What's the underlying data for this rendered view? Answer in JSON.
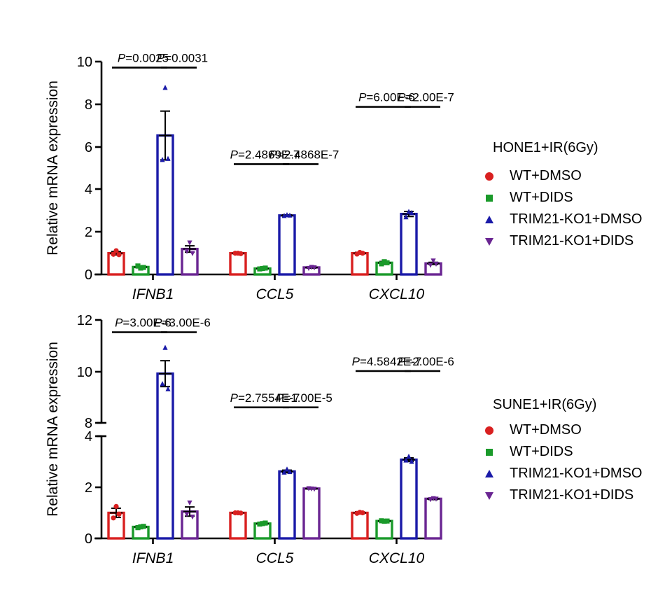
{
  "colors": {
    "WT+DMSO": "#d92020",
    "WT+DIDS": "#1a9a2a",
    "TRIM21-KO1+DMSO": "#1a1aa8",
    "TRIM21-KO1+DIDS": "#6a2592"
  },
  "chart_data": [
    {
      "type": "bar",
      "panel": "top",
      "ylabel": "Relative mRNA expression",
      "ylim": [
        0,
        10
      ],
      "yticks": [
        "0",
        "2",
        "4",
        "6",
        "8",
        "10"
      ],
      "categories": [
        "IFNB1",
        "CCL5",
        "CXCL10"
      ],
      "series": [
        {
          "name": "WT+DMSO",
          "marker": "circle",
          "values": [
            1.0,
            1.0,
            1.0
          ],
          "sem": [
            0.08,
            0.02,
            0.04
          ]
        },
        {
          "name": "WT+DIDS",
          "marker": "square",
          "values": [
            0.35,
            0.28,
            0.55
          ],
          "sem": [
            0.04,
            0.02,
            0.06
          ]
        },
        {
          "name": "TRIM21-KO1+DMSO",
          "marker": "triangle-up",
          "values": [
            6.55,
            2.78,
            2.85
          ],
          "sem": [
            1.15,
            0.03,
            0.12
          ]
        },
        {
          "name": "TRIM21-KO1+DIDS",
          "marker": "triangle-down",
          "values": [
            1.2,
            0.33,
            0.52
          ],
          "sem": [
            0.15,
            0.03,
            0.05
          ]
        }
      ],
      "points": [
        [
          [
            1.12,
            0.95,
            0.93
          ],
          [
            0.3,
            0.4,
            0.33
          ],
          [
            8.8,
            5.4,
            5.45
          ],
          [
            1.5,
            1.1,
            1.0
          ]
        ],
        [
          [
            1.0,
            1.0,
            0.98
          ],
          [
            0.28,
            0.26,
            0.3
          ],
          [
            2.8,
            2.76,
            2.78
          ],
          [
            0.35,
            0.3,
            0.33
          ]
        ],
        [
          [
            1.04,
            0.96,
            1.0
          ],
          [
            0.6,
            0.5,
            0.55
          ],
          [
            2.95,
            2.7,
            2.9
          ],
          [
            0.65,
            0.45,
            0.5
          ]
        ]
      ],
      "annotations": [
        {
          "text": "=0.0025",
          "category": "IFNB1",
          "from": 0,
          "to": 2,
          "y": 9.75
        },
        {
          "text": "=0.0031",
          "category": "IFNB1",
          "from": 2,
          "to": 3,
          "y": 9.75
        },
        {
          "text": "=2.4869E-7",
          "category": "CCL5",
          "from": 0,
          "to": 2,
          "y": 5.2
        },
        {
          "text": "=2.4868E-7",
          "category": "CCL5",
          "from": 2,
          "to": 3,
          "y": 5.2
        },
        {
          "text": "=6.00E-6",
          "category": "CXCL10",
          "from": 0,
          "to": 2,
          "y": 7.9
        },
        {
          "text": "=2.00E-7",
          "category": "CXCL10",
          "from": 2,
          "to": 3,
          "y": 7.9
        }
      ],
      "legend_title": "HONE1+IR(6Gy)"
    },
    {
      "type": "bar",
      "panel": "bottom",
      "ylabel": "Relative mRNA expression",
      "ylim": [
        0,
        12
      ],
      "axis_break": [
        4,
        8
      ],
      "yticks": [
        "0",
        "2",
        "4",
        "8",
        "10",
        "12"
      ],
      "categories": [
        "IFNB1",
        "CCL5",
        "CXCL10"
      ],
      "series": [
        {
          "name": "WT+DMSO",
          "marker": "circle",
          "values": [
            1.0,
            1.0,
            1.0
          ],
          "sem": [
            0.18,
            0.02,
            0.04
          ]
        },
        {
          "name": "WT+DIDS",
          "marker": "square",
          "values": [
            0.45,
            0.58,
            0.68
          ],
          "sem": [
            0.04,
            0.03,
            0.02
          ]
        },
        {
          "name": "TRIM21-KO1+DMSO",
          "marker": "triangle-up",
          "values": [
            9.9,
            2.62,
            3.08
          ],
          "sem": [
            0.5,
            0.05,
            0.07
          ]
        },
        {
          "name": "TRIM21-KO1+DIDS",
          "marker": "triangle-down",
          "values": [
            1.05,
            1.95,
            1.55
          ],
          "sem": [
            0.18,
            0.02,
            0.03
          ]
        }
      ],
      "points": [
        [
          [
            1.25,
            0.8,
            0.95
          ],
          [
            0.45,
            0.42,
            0.47
          ],
          [
            10.9,
            9.5,
            9.3
          ],
          [
            1.4,
            0.95,
            0.85
          ]
        ],
        [
          [
            1.0,
            1.0,
            0.99
          ],
          [
            0.58,
            0.56,
            0.6
          ],
          [
            2.7,
            2.58,
            2.6
          ],
          [
            1.95,
            1.96,
            1.94
          ]
        ],
        [
          [
            1.02,
            0.98,
            1.0
          ],
          [
            0.67,
            0.69,
            0.68
          ],
          [
            3.2,
            3.05,
            3.0
          ],
          [
            1.57,
            1.53,
            1.55
          ]
        ]
      ],
      "annotations": [
        {
          "text": "=3.00E-6",
          "category": "IFNB1",
          "from": 0,
          "to": 2,
          "y": 11.5
        },
        {
          "text": "=3.00E-6",
          "category": "IFNB1",
          "from": 2,
          "to": 3,
          "y": 11.5
        },
        {
          "text": "=2.7554E-7",
          "category": "CCL5",
          "from": 0,
          "to": 2,
          "y": 8.6
        },
        {
          "text": "=1.00E-5",
          "category": "CCL5",
          "from": 2,
          "to": 3,
          "y": 8.6
        },
        {
          "text": "=4.5842E-7",
          "category": "CXCL10",
          "from": 0,
          "to": 2,
          "y": 10.0
        },
        {
          "text": "=2.00E-6",
          "category": "CXCL10",
          "from": 2,
          "to": 3,
          "y": 10.0
        }
      ],
      "legend_title": "SUNE1+IR(6Gy)"
    }
  ]
}
